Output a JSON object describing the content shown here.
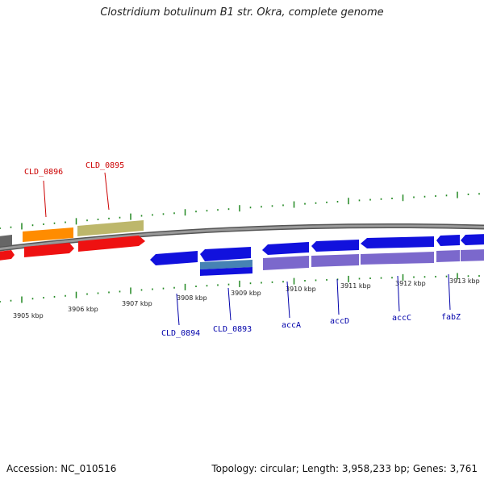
{
  "title": "Clostridium botulinum B1 str. Okra, complete genome",
  "footer": {
    "accession": "Accession: NC_010516",
    "info": "Topology: circular; Length: 3,958,233 bp; Genes: 3,761"
  },
  "colors": {
    "backbone": "#888888",
    "tick": "#228822",
    "forward_label": "#cc0000",
    "reverse_label": "#0000aa",
    "cds_red": "#ee1111",
    "cds_blue": "#1111dd",
    "cds_purple": "#7b68cc",
    "cds_orange": "#ff8c00",
    "cds_khaki": "#bdb76b",
    "cds_gray": "#666666",
    "cds_steel": "#4682b4"
  },
  "scale": {
    "labels": [
      "3905 kbp",
      "3906 kbp",
      "3907 kbp",
      "3908 kbp",
      "3909 kbp",
      "3910 kbp",
      "3911 kbp",
      "3912 kbp",
      "3913 kbp"
    ]
  },
  "genes": {
    "forward": [
      {
        "label": "CLD_0896",
        "color": "#cc0000"
      },
      {
        "label": "CLD_0895",
        "color": "#cc0000"
      }
    ],
    "reverse": [
      {
        "label": "CLD_0894",
        "color": "#0000aa"
      },
      {
        "label": "CLD_0893",
        "color": "#0000aa"
      },
      {
        "label": "accA",
        "color": "#0000aa"
      },
      {
        "label": "accD",
        "color": "#0000aa"
      },
      {
        "label": "accC",
        "color": "#0000aa"
      },
      {
        "label": "fabZ",
        "color": "#0000aa"
      }
    ]
  }
}
